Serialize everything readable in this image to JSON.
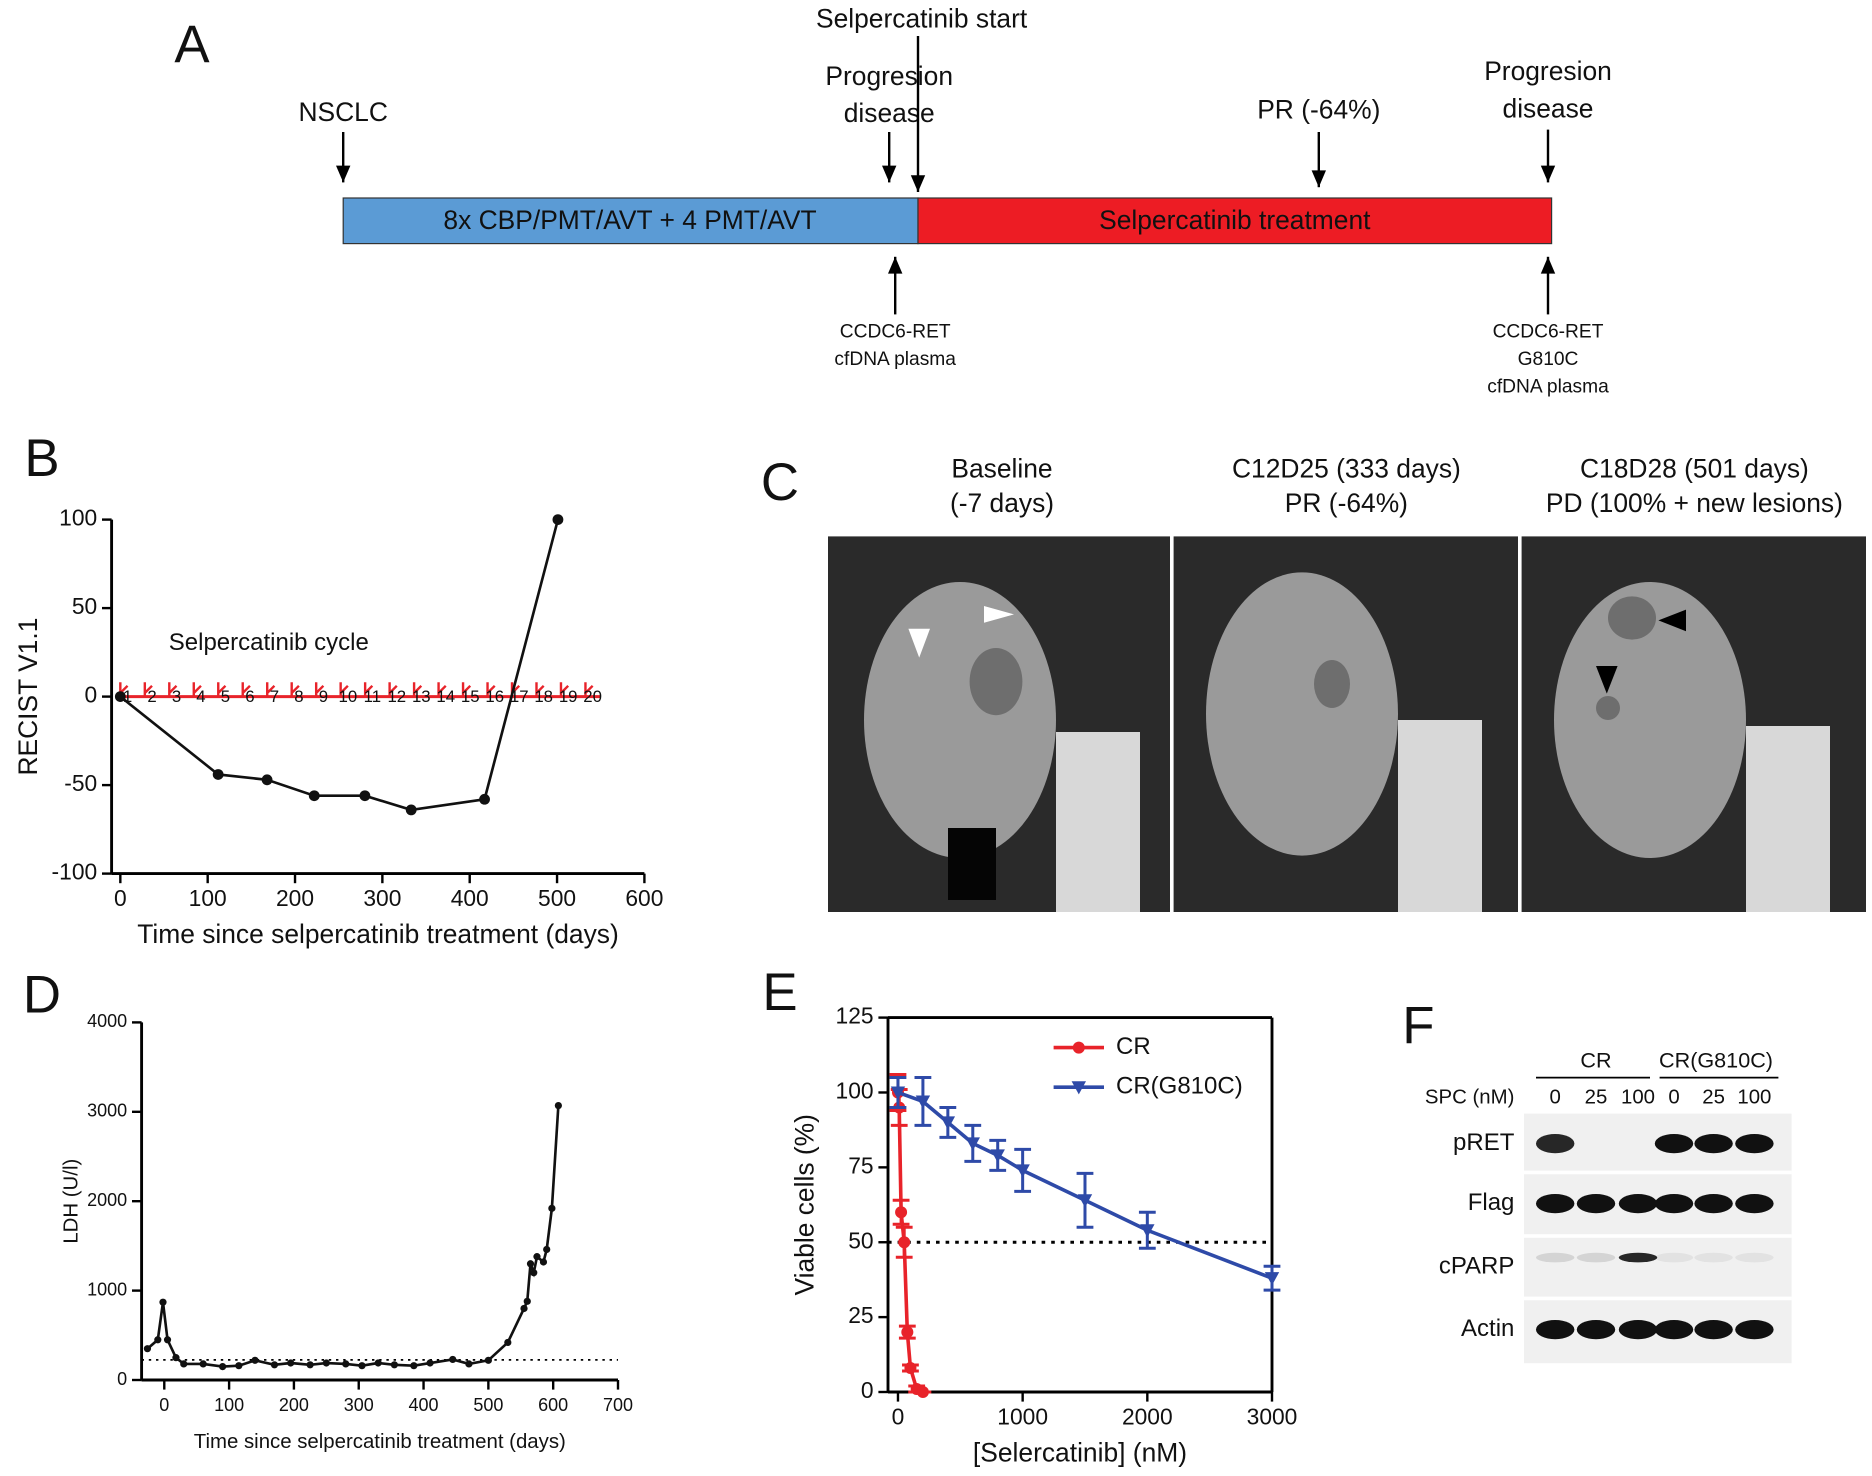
{
  "panel_a": {
    "label": "A",
    "events_top": [
      {
        "text": [
          "NSCLC"
        ]
      },
      {
        "text": [
          "Progresion",
          "disease"
        ]
      },
      {
        "text": [
          "Selpercatinib start"
        ]
      },
      {
        "text": [
          "PR (-64%)"
        ]
      },
      {
        "text": [
          "Progresion",
          "disease"
        ]
      }
    ],
    "phases": [
      "8x CBP/PMT/AVT + 4 PMT/AVT",
      "Selpercatinib treatment"
    ],
    "events_bottom": [
      {
        "text": [
          "CCDC6-RET",
          "cfDNA plasma"
        ]
      },
      {
        "text": [
          "CCDC6-RET",
          "G810C",
          "cfDNA plasma"
        ]
      }
    ]
  },
  "chart_data": [
    {
      "panel": "B",
      "type": "line",
      "x_label": "Time since selpercatinib treatment (days)",
      "y_label": "RECIST V1.1",
      "annotation": "Selpercatinib cycle",
      "cycle_labels": [
        1,
        2,
        3,
        4,
        5,
        6,
        7,
        8,
        9,
        10,
        11,
        12,
        13,
        14,
        15,
        16,
        17,
        18,
        19,
        20
      ],
      "x": [
        0,
        112,
        168,
        222,
        280,
        333,
        417,
        501
      ],
      "series": [
        {
          "color": "#111111",
          "values": [
            0,
            -44,
            -47,
            -56,
            -56,
            -64,
            -58,
            100
          ]
        }
      ],
      "xlim": [
        -10,
        600
      ],
      "xticks": [
        0,
        100,
        200,
        300,
        400,
        500,
        600
      ],
      "ylim": [
        -100,
        100
      ],
      "yticks": [
        -100,
        -50,
        0,
        50,
        100
      ]
    },
    {
      "panel": "D",
      "type": "line",
      "x_label": "Time since selpercatinib treatment (days)",
      "y_label": "LDH (U/l)",
      "x": [
        -26,
        -10,
        -2,
        5,
        18,
        30,
        60,
        90,
        115,
        140,
        170,
        195,
        225,
        250,
        280,
        305,
        330,
        355,
        385,
        410,
        445,
        470,
        500,
        530,
        555,
        560,
        565,
        570,
        575,
        585,
        590,
        598,
        608
      ],
      "series": [
        {
          "color": "#111111",
          "values": [
            350,
            450,
            870,
            450,
            250,
            180,
            180,
            150,
            160,
            220,
            170,
            190,
            170,
            190,
            180,
            160,
            190,
            170,
            160,
            190,
            230,
            180,
            220,
            420,
            800,
            880,
            1300,
            1200,
            1380,
            1320,
            1460,
            1920,
            3070
          ]
        }
      ],
      "reference_line": 225,
      "xlim": [
        -35,
        700
      ],
      "xticks": [
        0,
        100,
        200,
        300,
        400,
        500,
        600,
        700
      ],
      "ylim": [
        0,
        4000
      ],
      "yticks": [
        0,
        1000,
        2000,
        3000,
        4000
      ]
    },
    {
      "panel": "E",
      "type": "scatter",
      "x_label": "[Selercatinib] (nM)",
      "y_label": "Viable cells (%)",
      "series": [
        {
          "name": "CR",
          "color": "#e8232a",
          "marker": "circle",
          "x": [
            0,
            10,
            25,
            50,
            75,
            100,
            150,
            200
          ],
          "values": [
            100,
            95,
            60,
            50,
            20,
            8,
            1,
            0
          ],
          "errors": [
            6,
            6,
            4,
            5,
            2,
            1,
            1,
            0
          ]
        },
        {
          "name": "CR(G810C)",
          "color": "#2e4aa8",
          "marker": "triangle",
          "x": [
            0,
            200,
            400,
            600,
            800,
            1000,
            1500,
            2000,
            3000
          ],
          "values": [
            100,
            97,
            90,
            83,
            79,
            74,
            64,
            54,
            38
          ],
          "errors": [
            5,
            8,
            5,
            6,
            5,
            7,
            9,
            6,
            4
          ]
        }
      ],
      "reference_line": 50,
      "xlim": [
        -80,
        3000
      ],
      "xticks": [
        0,
        1000,
        2000,
        3000
      ],
      "ylim": [
        0,
        125
      ],
      "yticks": [
        0,
        25,
        50,
        75,
        100,
        125
      ]
    }
  ],
  "panel_c": {
    "label": "C",
    "scans": [
      {
        "text": [
          "Baseline",
          "(-7 days)"
        ]
      },
      {
        "text": [
          "C12D25 (333 days)",
          "PR (-64%)"
        ]
      },
      {
        "text": [
          "C18D28 (501 days)",
          "PD (100% + new lesions)"
        ]
      }
    ]
  },
  "panel_f": {
    "label": "F",
    "groups": [
      "CR",
      "CR(G810C)"
    ],
    "dose_label": "SPC (nM)",
    "doses": [
      0,
      25,
      100,
      0,
      25,
      100
    ],
    "rows": [
      "pRET",
      "Flag",
      "cPARP",
      "Actin"
    ]
  }
}
